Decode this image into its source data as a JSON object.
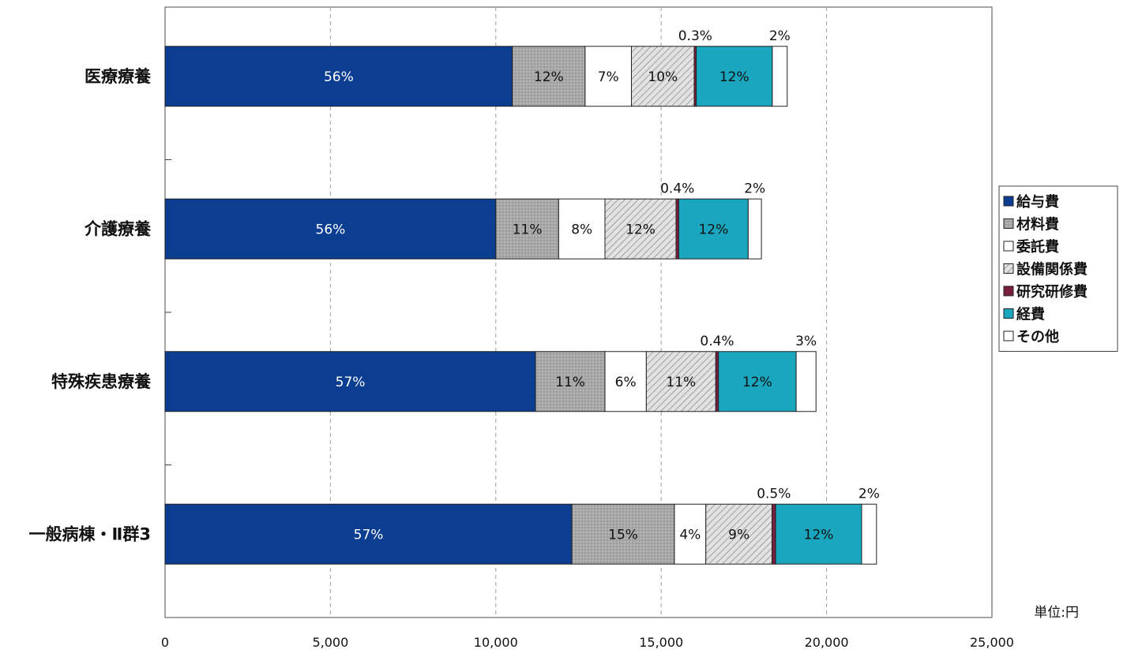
{
  "chart_data": {
    "type": "bar",
    "orientation": "horizontal",
    "stacked": true,
    "categories": [
      "医療療養",
      "介護療養",
      "特殊疾患療養",
      "一般病棟・Ⅱ群3"
    ],
    "series": [
      {
        "name": "給与費",
        "color": "#0b3d91",
        "pattern": "solid",
        "values": [
          10500,
          10000,
          11200,
          12300
        ],
        "labels": [
          "56%",
          "56%",
          "57%",
          "57%"
        ],
        "label_color": "#ffffff"
      },
      {
        "name": "材料費",
        "color": "#a8a8a8",
        "pattern": "dots",
        "values": [
          2200,
          1900,
          2100,
          3100
        ],
        "labels": [
          "12%",
          "11%",
          "11%",
          "15%"
        ],
        "label_color": "#111111"
      },
      {
        "name": "委託費",
        "color": "#ffffff",
        "pattern": "solid",
        "values": [
          1400,
          1400,
          1250,
          950
        ],
        "labels": [
          "7%",
          "8%",
          "6%",
          "4%"
        ],
        "label_color": "#111111"
      },
      {
        "name": "設備関係費",
        "color": "#dcdcdc",
        "pattern": "hatch",
        "values": [
          1900,
          2150,
          2100,
          2000
        ],
        "labels": [
          "10%",
          "12%",
          "11%",
          "9%"
        ],
        "label_color": "#111111"
      },
      {
        "name": "研究研修費",
        "color": "#7a1f3d",
        "pattern": "solid",
        "values": [
          60,
          80,
          80,
          110
        ],
        "labels": [
          "0.3%",
          "0.4%",
          "0.4%",
          "0.5%"
        ],
        "label_color": "#111111",
        "label_outside": true
      },
      {
        "name": "経費",
        "color": "#1ba6bf",
        "pattern": "solid",
        "values": [
          2300,
          2100,
          2350,
          2600
        ],
        "labels": [
          "12%",
          "12%",
          "12%",
          "12%"
        ],
        "label_color": "#111111"
      },
      {
        "name": "その他",
        "color": "#ffffff",
        "pattern": "solid",
        "values": [
          450,
          400,
          600,
          450
        ],
        "labels": [
          "2%",
          "2%",
          "3%",
          "2%"
        ],
        "label_color": "#111111",
        "label_outside": true
      }
    ],
    "x_ticks": [
      "0",
      "5,000",
      "10,000",
      "15,000",
      "20,000",
      "25,000"
    ],
    "xlim": [
      0,
      25000
    ],
    "grid": "vertical dashed",
    "legend_position": "right",
    "unit_label": "単位:円"
  }
}
